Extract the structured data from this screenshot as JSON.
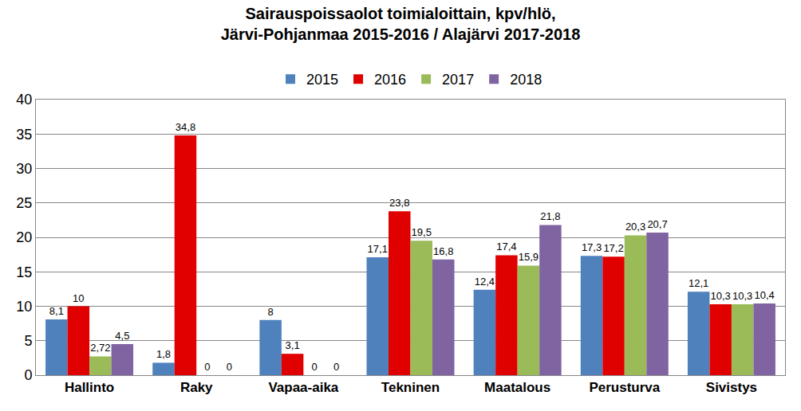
{
  "chart_data": {
    "type": "bar",
    "title": "Sairauspoissaolot toimialoittain, kpv/hlö,\nJärvi-Pohjanmaa 2015-2016 / Alajärvi 2017-2018",
    "categories": [
      "Hallinto",
      "Raky",
      "Vapaa-aika",
      "Tekninen",
      "Maatalous",
      "Perusturva",
      "Sivistys"
    ],
    "series": [
      {
        "name": "2015",
        "color": "#4f81bd",
        "values": [
          8.1,
          1.8,
          8,
          17.1,
          12.4,
          17.3,
          12.1
        ],
        "value_labels": [
          "8,1",
          "1,8",
          "8",
          "17,1",
          "12,4",
          "17,3",
          "12,1"
        ]
      },
      {
        "name": "2016",
        "color": "#e00000",
        "values": [
          10,
          34.8,
          3.1,
          23.8,
          17.4,
          17.2,
          10.3
        ],
        "value_labels": [
          "10",
          "34,8",
          "3,1",
          "23,8",
          "17,4",
          "17,2",
          "10,3"
        ]
      },
      {
        "name": "2017",
        "color": "#9bbb59",
        "values": [
          2.72,
          0,
          0,
          19.5,
          15.9,
          20.3,
          10.3
        ],
        "value_labels": [
          "2,72",
          "0",
          "0",
          "19,5",
          "15,9",
          "20,3",
          "10,3"
        ]
      },
      {
        "name": "2018",
        "color": "#8064a2",
        "values": [
          4.5,
          0,
          0,
          16.8,
          21.8,
          20.7,
          10.4
        ],
        "value_labels": [
          "4,5",
          "0",
          "0",
          "16,8",
          "21,8",
          "20,7",
          "10,4"
        ]
      }
    ],
    "ylim": [
      0,
      40
    ],
    "yticks": [
      0,
      5,
      10,
      15,
      20,
      25,
      30,
      35,
      40
    ],
    "grid": true,
    "legend": "top",
    "data_labels": true
  }
}
